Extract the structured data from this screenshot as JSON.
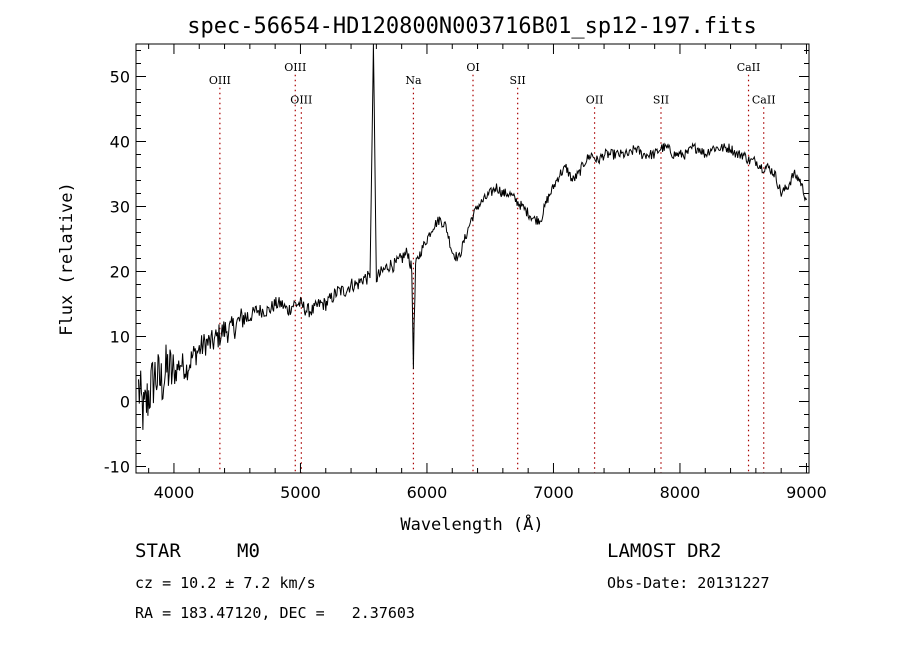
{
  "chart_data": {
    "type": "line",
    "title": "spec-56654-HD120800N003716B01_sp12-197.fits",
    "xlabel": "Wavelength (Å)",
    "ylabel": "Flux (relative)",
    "xlim": [
      3700,
      9020
    ],
    "ylim": [
      -11,
      55
    ],
    "x_ticks": [
      4000,
      5000,
      6000,
      7000,
      8000,
      9000
    ],
    "y_ticks": [
      -10,
      0,
      10,
      20,
      30,
      40,
      50
    ],
    "grid": false,
    "line_color": "#000000",
    "marker_color": "#aa0000",
    "lines": [
      {
        "name": "OIII",
        "x": 4363,
        "label_y": 49.5
      },
      {
        "name": "OIII",
        "x": 4959,
        "label_y": 51.5
      },
      {
        "name": "OIII",
        "x": 5007,
        "label_y": 46.5
      },
      {
        "name": "Na",
        "x": 5893,
        "label_y": 49.5
      },
      {
        "name": "OI",
        "x": 6364,
        "label_y": 51.5
      },
      {
        "name": "SII",
        "x": 6717,
        "label_y": 49.5
      },
      {
        "name": "OII",
        "x": 7325,
        "label_y": 46.5
      },
      {
        "name": "SII",
        "x": 7850,
        "label_y": 46.5
      },
      {
        "name": "CaII",
        "x": 8542,
        "label_y": 51.5
      },
      {
        "name": "CaII",
        "x": 8662,
        "label_y": 46.5
      }
    ],
    "spectrum": {
      "x": [
        3720,
        3760,
        3800,
        3850,
        3900,
        3950,
        4000,
        4050,
        4100,
        4150,
        4200,
        4250,
        4300,
        4350,
        4400,
        4450,
        4500,
        4550,
        4600,
        4650,
        4700,
        4750,
        4800,
        4850,
        4900,
        4950,
        5000,
        5050,
        5100,
        5150,
        5200,
        5250,
        5300,
        5350,
        5400,
        5450,
        5500,
        5550,
        5577,
        5600,
        5650,
        5700,
        5750,
        5800,
        5850,
        5880,
        5893,
        5910,
        5950,
        6000,
        6050,
        6100,
        6150,
        6200,
        6250,
        6300,
        6350,
        6400,
        6450,
        6500,
        6550,
        6600,
        6650,
        6700,
        6750,
        6800,
        6850,
        6900,
        6950,
        7000,
        7050,
        7100,
        7150,
        7200,
        7250,
        7300,
        7350,
        7400,
        7450,
        7500,
        7550,
        7600,
        7650,
        7700,
        7750,
        7800,
        7850,
        7900,
        7950,
        8000,
        8050,
        8100,
        8150,
        8200,
        8250,
        8300,
        8350,
        8400,
        8450,
        8500,
        8550,
        8600,
        8650,
        8700,
        8750,
        8800,
        8850,
        8900,
        8950,
        9000
      ],
      "y": [
        2,
        -2,
        1,
        4,
        3,
        5,
        4,
        6,
        5,
        7,
        8,
        9,
        9,
        10,
        11,
        11,
        12,
        13,
        13,
        14,
        14,
        14,
        15,
        15,
        14,
        15,
        15,
        14,
        14,
        15,
        15,
        16,
        17,
        17,
        18,
        18,
        19,
        19,
        55,
        19,
        20,
        21,
        21,
        22,
        23,
        20,
        6,
        21,
        23,
        25,
        27,
        28,
        27,
        23,
        22,
        25,
        28,
        30,
        31,
        32,
        33,
        32,
        32,
        31,
        30,
        29,
        28,
        28,
        31,
        33,
        35,
        36,
        34,
        35,
        37,
        38,
        37,
        38,
        38,
        38,
        38,
        38,
        39,
        38,
        38,
        38,
        39,
        39,
        38,
        38,
        38,
        39,
        39,
        38,
        39,
        39,
        39,
        39,
        38,
        38,
        37,
        37,
        36,
        36,
        35,
        32,
        33,
        35,
        34,
        31
      ]
    }
  },
  "info": {
    "object_type": "STAR",
    "subclass": "M0",
    "survey": "LAMOST DR2",
    "cz": "cz = 10.2 ± 7.2 km/s",
    "obs_date": "Obs-Date: 20131227",
    "radec": "RA = 183.47120, DEC =   2.37603"
  }
}
